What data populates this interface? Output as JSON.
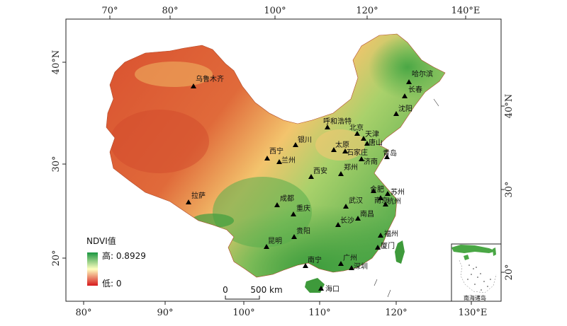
{
  "map": {
    "top_ticks": [
      "70°",
      "80°",
      "100°",
      "120°",
      "140°E"
    ],
    "bottom_ticks": [
      "80°",
      "90°",
      "100°",
      "110°",
      "120°",
      "130°E"
    ],
    "left_ticks": [
      "40°N",
      "30°",
      "20°"
    ],
    "right_ticks": [
      "40°N",
      "30°",
      "20°"
    ],
    "cities": [
      {
        "name": "乌鲁木齐"
      },
      {
        "name": "哈尔滨"
      },
      {
        "name": "长春"
      },
      {
        "name": "沈阳"
      },
      {
        "name": "呼和浩特"
      },
      {
        "name": "北京"
      },
      {
        "name": "天津"
      },
      {
        "name": "唐山"
      },
      {
        "name": "银川"
      },
      {
        "name": "太原"
      },
      {
        "name": "石家庄"
      },
      {
        "name": "西宁"
      },
      {
        "name": "兰州"
      },
      {
        "name": "青岛"
      },
      {
        "name": "济南"
      },
      {
        "name": "郑州"
      },
      {
        "name": "西安"
      },
      {
        "name": "合肥"
      },
      {
        "name": "苏州"
      },
      {
        "name": "南京"
      },
      {
        "name": "杭州"
      },
      {
        "name": "武汉"
      },
      {
        "name": "成都"
      },
      {
        "name": "拉萨"
      },
      {
        "name": "重庆"
      },
      {
        "name": "南昌"
      },
      {
        "name": "长沙"
      },
      {
        "name": "贵阳"
      },
      {
        "name": "福州"
      },
      {
        "name": "昆明"
      },
      {
        "name": "厦门"
      },
      {
        "name": "南宁"
      },
      {
        "name": "广州"
      },
      {
        "name": "深圳"
      },
      {
        "name": "海口"
      }
    ],
    "legend": {
      "title": "NDVI值",
      "high_label": "高: 0.8929",
      "low_label": "低: 0",
      "high_color": "#1a9641",
      "mid_color": "#ffffbf",
      "low_color": "#d7191c"
    },
    "scale_bar": {
      "zero_label": "0",
      "max_label": "500 km"
    },
    "inset": {
      "title": "南海诸岛"
    }
  }
}
